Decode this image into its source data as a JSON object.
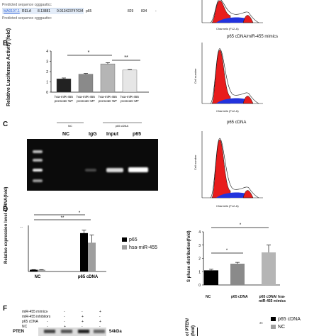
{
  "panelA": {
    "row": {
      "id": "MA0107.1",
      "tf": "RELA",
      "score": "8.13881",
      "rel": "0.913423747634",
      "gene": "p65",
      "start": "829",
      "end": "834",
      "strand": "-"
    },
    "predicted1": "Predicted sequence cgggaattcc",
    "predicted2": "Predicted sequence cgggaattcc"
  },
  "panelB": {
    "letter": "B",
    "ylabel": "Relative Luciferase Activity (fold)",
    "star1": "*",
    "star2": "**",
    "group_nc": "NC",
    "group_p65": "p65 cDNA"
  },
  "panelC": {
    "letter": "C",
    "lanes": [
      "NC",
      "IgG",
      "Input",
      "p65"
    ]
  },
  "panelD": {
    "letter": "D",
    "ylabel": "Relative expression level of RNA(fold)",
    "axis_break": "...",
    "stars": [
      "*",
      "**"
    ],
    "legend": [
      {
        "name": "p65",
        "color": "#000000"
      },
      {
        "name": "hsa-miR-455",
        "color": "#9e9e9e"
      }
    ]
  },
  "flow": [
    {
      "title": "",
      "ylabel": "",
      "xlabel": "Channels (FL2-A)"
    },
    {
      "title": "p65 cDNA/miR-455 mimics",
      "ylabel": "Cell number",
      "xlabel": "Channels (FL2-A)"
    },
    {
      "title": "p65 cDNA",
      "ylabel": "Cell number",
      "xlabel": "Channels (FL2-A)"
    }
  ],
  "sphase": {
    "ylabel": "S phase distribution(fold)",
    "stars": [
      "*",
      "*"
    ]
  },
  "panelF": {
    "letter": "F",
    "rows": [
      {
        "label": "miR-455 mimics",
        "marks": [
          "-",
          "-",
          "-",
          "+"
        ]
      },
      {
        "label": "miR-455 inhibitors",
        "marks": [
          "-",
          "-",
          "+",
          "-"
        ]
      },
      {
        "label": "p65 cDNA",
        "marks": [
          "-",
          "-",
          "+",
          "+"
        ]
      },
      {
        "label": "NC",
        "marks": [
          "-",
          "+",
          "-",
          "-"
        ]
      }
    ],
    "pten": "PTEN",
    "kda": "54kDa",
    "ylabel_partial": "of PTEN/",
    "ylabel_partial2": "(fold)",
    "legend": [
      {
        "name": "p65 cDNA",
        "color": "#000000"
      },
      {
        "name": "NC",
        "color": "#9e9e9e"
      }
    ],
    "stars": "**"
  },
  "chart_data": [
    {
      "type": "bar",
      "categories": [
        "hsa-miR-455 promoter WT",
        "hsa-miR-455 promoter MT",
        "hsa-miR-455 promoter WT",
        "hsa-miR-455 promoter MT"
      ],
      "values": [
        1.3,
        1.75,
        2.75,
        2.15
      ],
      "errors": [
        0.08,
        0.07,
        0.12,
        0.05
      ],
      "colors": [
        "#222222",
        "#8a8a8a",
        "#b5b5b5",
        "#e6e6e6"
      ],
      "ylim": [
        0,
        4
      ],
      "yticks": [
        "0",
        "1",
        "2",
        "3",
        "4"
      ],
      "ylabel": "Relative Luciferase Activity (fold)"
    },
    {
      "type": "bar",
      "categories": [
        "NC",
        "p65 cDNA"
      ],
      "series": [
        {
          "name": "p65",
          "values": [
            0.9,
            20.0
          ],
          "errors": [
            0.1,
            1.5
          ]
        },
        {
          "name": "hsa-miR-455",
          "values": [
            0.9,
            15.0
          ],
          "errors": [
            0.1,
            4.0
          ]
        }
      ],
      "ylabel": "Relative expression level of RNA(fold)"
    },
    {
      "type": "bar",
      "categories": [
        "NC",
        "p65 cDNA",
        "p65 cDNA/ hsa-miR-455 mimics"
      ],
      "values": [
        1.1,
        1.6,
        2.45
      ],
      "errors": [
        0.08,
        0.1,
        0.55
      ],
      "colors": [
        "#000000",
        "#8a8a8a",
        "#b5b5b5"
      ],
      "ylim": [
        0,
        4
      ],
      "yticks": [
        "0",
        "1",
        "2",
        "3",
        "4"
      ],
      "ylabel": "S phase distribution(fold)"
    }
  ]
}
